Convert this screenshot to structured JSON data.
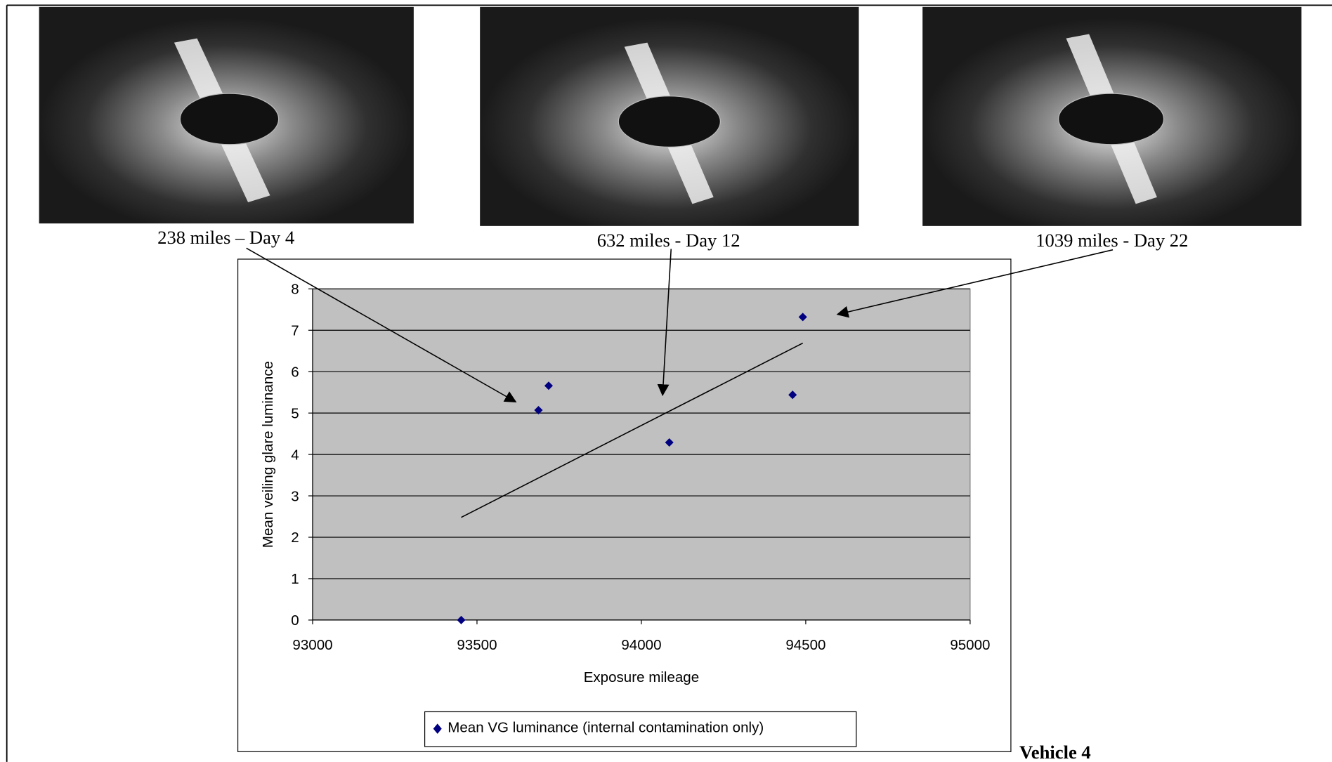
{
  "chart_data": {
    "type": "scatter",
    "annotations": [
      "238 miles – Day 4",
      "632 miles - Day 12",
      "1039 miles - Day 22"
    ],
    "label": "Vehicle 4",
    "x_label": "Exposure mileage",
    "y_label": "Mean veiling glare luminance",
    "series": [
      {
        "name": "Mean VG luminance (internal contamination only)",
        "color": "#000080",
        "x": [
          93452,
          93687,
          93718,
          94085,
          94460,
          94491
        ],
        "values": [
          0,
          5.07,
          5.66,
          4.29,
          5.44,
          7.32
        ]
      }
    ],
    "trendline": {
      "color": "#000000",
      "x": [
        93452,
        94491
      ],
      "values": [
        2.48,
        6.69
      ]
    },
    "xlim": [
      93000,
      95000
    ],
    "xticks": [
      93000,
      93500,
      94000,
      94500,
      95000
    ],
    "ylim": [
      0,
      8
    ],
    "yticks": [
      0,
      1,
      2,
      3,
      4,
      5,
      6,
      7,
      8
    ],
    "grid": true,
    "plot_background": "#c0c0c0"
  }
}
